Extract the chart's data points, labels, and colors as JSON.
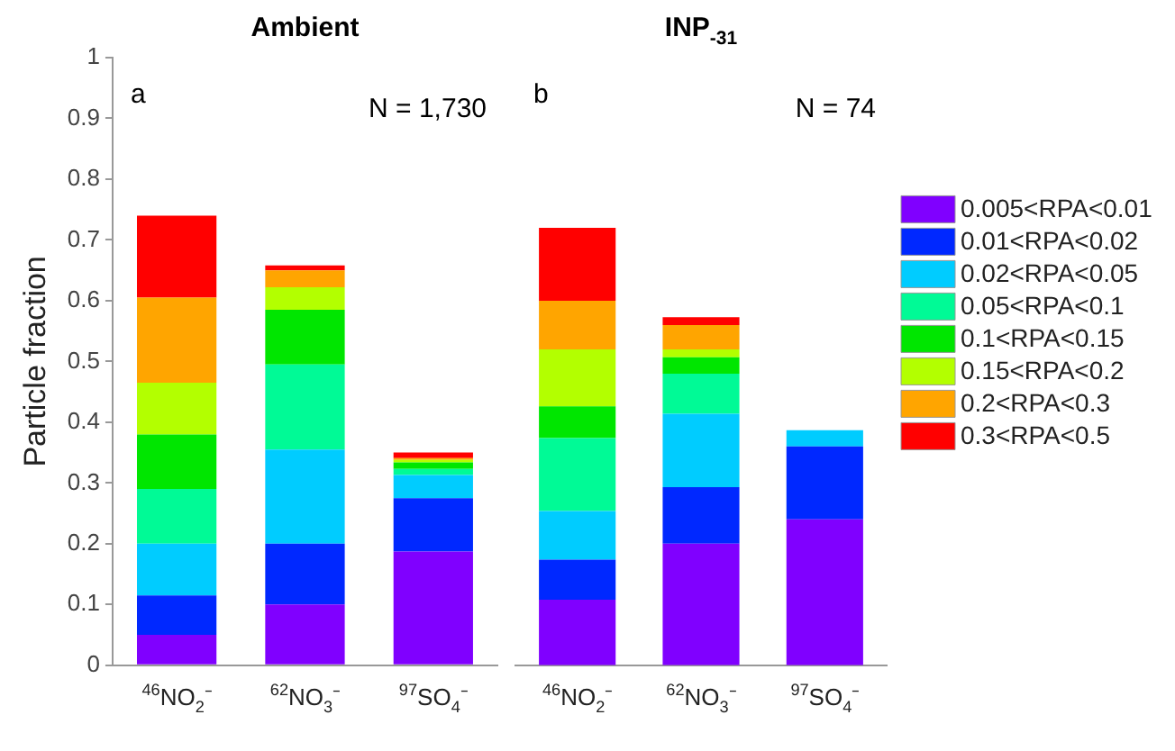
{
  "chart_data": [
    {
      "type": "bar",
      "title": "Ambient",
      "ylabel": "Particle fraction",
      "stacked": true,
      "categories": [
        "$^{46}$NO$_{2}$⁻",
        "$^{62}$NO$_{3}$⁻",
        "$^{97}$SO$_{4}$⁻"
      ],
      "ylim": [
        0,
        1
      ],
      "yticks": [
        0,
        0.1,
        0.2,
        0.3,
        0.4,
        0.5,
        0.6,
        0.7,
        0.8,
        0.9,
        1
      ],
      "annotations": [
        "a",
        "N = 1,730"
      ],
      "series": [
        {
          "color": "#8000ff",
          "values": [
            0.05,
            0.1,
            0.187
          ]
        },
        {
          "color": "#0028ff",
          "values": [
            0.065,
            0.1,
            0.088
          ]
        },
        {
          "color": "#00ccff",
          "values": [
            0.085,
            0.155,
            0.038
          ]
        },
        {
          "color": "#00fa96",
          "values": [
            0.09,
            0.14,
            0.01
          ]
        },
        {
          "color": "#00e600",
          "values": [
            0.09,
            0.09,
            0.011
          ]
        },
        {
          "color": "#b3ff00",
          "values": [
            0.085,
            0.037,
            0.004
          ]
        },
        {
          "color": "#ffa500",
          "values": [
            0.14,
            0.028,
            0.003
          ]
        },
        {
          "color": "#ff0000",
          "values": [
            0.135,
            0.008,
            0.009
          ]
        }
      ]
    },
    {
      "type": "bar",
      "title": "INP$_{-31}$",
      "stacked": true,
      "legend": "right",
      "tick_labels": "x",
      "categories": [
        "$^{46}$NO$_{2}$⁻",
        "$^{62}$NO$_{3}$⁻",
        "$^{97}$SO$_{4}$⁻"
      ],
      "ylim": [
        0,
        1
      ],
      "yticks": [
        0,
        0.1,
        0.2,
        0.3,
        0.4,
        0.5,
        0.6,
        0.7,
        0.8,
        0.9,
        1
      ],
      "annotations": [
        "b",
        "N = 74"
      ],
      "series": [
        {
          "name": "0.005<RPA<0.01",
          "color": "#8000ff",
          "values": [
            0.108,
            0.2,
            0.24
          ]
        },
        {
          "name": "0.01<RPA<0.02",
          "color": "#0028ff",
          "values": [
            0.066,
            0.093,
            0.12
          ]
        },
        {
          "name": "0.02<RPA<0.05",
          "color": "#00ccff",
          "values": [
            0.08,
            0.121,
            0.027
          ]
        },
        {
          "name": "0.05<RPA<0.1",
          "color": "#00fa96",
          "values": [
            0.12,
            0.066,
            0
          ]
        },
        {
          "name": "0.1<RPA<0.15",
          "color": "#00e600",
          "values": [
            0.052,
            0.027,
            0
          ]
        },
        {
          "name": "0.15<RPA<0.2",
          "color": "#b3ff00",
          "values": [
            0.094,
            0.013,
            0
          ]
        },
        {
          "name": "0.2<RPA<0.3",
          "color": "#ffa500",
          "values": [
            0.08,
            0.04,
            0
          ]
        },
        {
          "name": "0.3<RPA<0.5",
          "color": "#ff0000",
          "values": [
            0.12,
            0.013,
            0
          ]
        }
      ]
    }
  ]
}
